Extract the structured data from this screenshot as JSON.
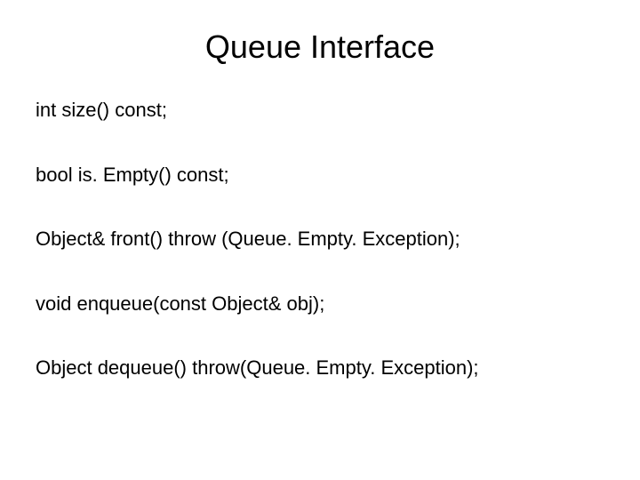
{
  "slide": {
    "title": "Queue Interface",
    "title_fontsize": 36,
    "body_fontsize": 22,
    "background_color": "#ffffff",
    "text_color": "#000000",
    "font_family": "Arial, Helvetica, sans-serif",
    "methods": [
      "int size() const;",
      "bool is. Empty() const;",
      "Object& front() throw (Queue. Empty. Exception);",
      "void enqueue(const Object& obj);",
      "Object dequeue() throw(Queue. Empty. Exception);"
    ]
  }
}
